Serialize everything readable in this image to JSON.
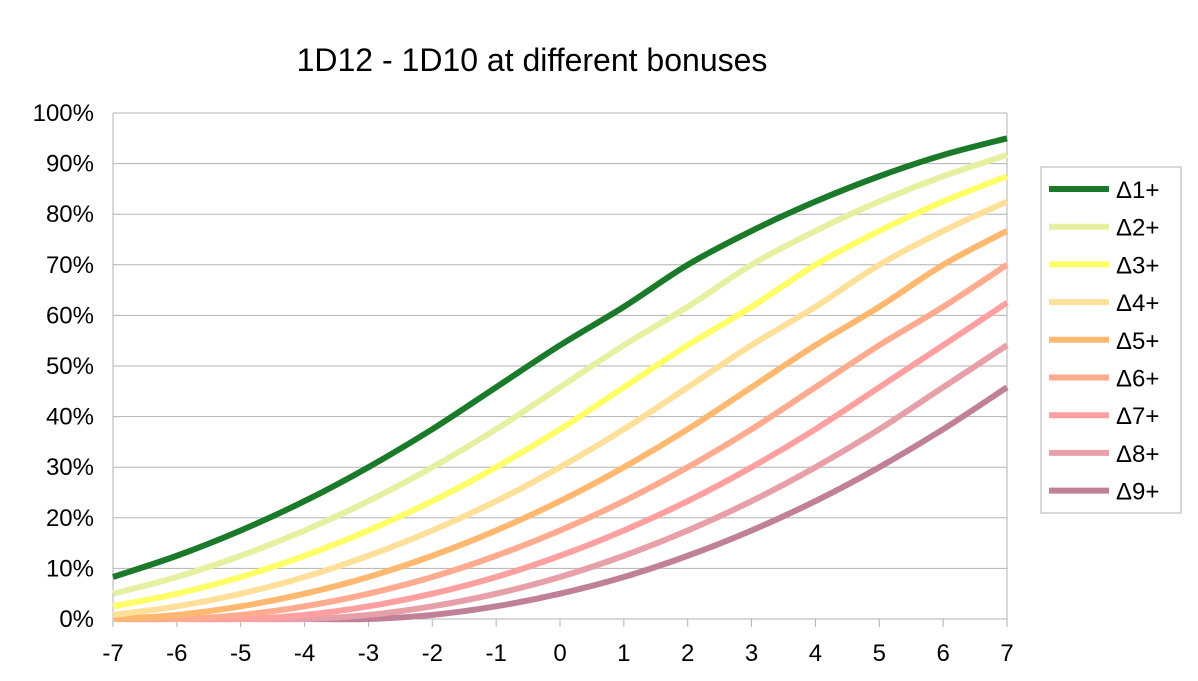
{
  "chart_data": {
    "type": "line",
    "title": "1D12 - 1D10 at different bonuses",
    "xlabel": "",
    "ylabel": "",
    "x": [
      -7,
      -6,
      -5,
      -4,
      -3,
      -2,
      -1,
      0,
      1,
      2,
      3,
      4,
      5,
      6,
      7
    ],
    "xticks": [
      "-7",
      "-6",
      "-5",
      "-4",
      "-3",
      "-2",
      "-1",
      "0",
      "1",
      "2",
      "3",
      "4",
      "5",
      "6",
      "7"
    ],
    "xlim": [
      -7,
      7
    ],
    "ylim": [
      0,
      1
    ],
    "yticks": [
      {
        "value": 0,
        "label": "0%"
      },
      {
        "value": 0.1,
        "label": "10%"
      },
      {
        "value": 0.2,
        "label": "20%"
      },
      {
        "value": 0.3,
        "label": "30%"
      },
      {
        "value": 0.4,
        "label": "40%"
      },
      {
        "value": 0.5,
        "label": "50%"
      },
      {
        "value": 0.6,
        "label": "60%"
      },
      {
        "value": 0.7,
        "label": "70%"
      },
      {
        "value": 0.8,
        "label": "80%"
      },
      {
        "value": 0.9,
        "label": "90%"
      },
      {
        "value": 1,
        "label": "100%"
      }
    ],
    "grid": "horizontal",
    "legend_position": "right",
    "series": [
      {
        "name": "Δ1+",
        "color": "#1a7a2a",
        "values": [
          0.083,
          0.125,
          0.175,
          0.233,
          0.3,
          0.375,
          0.458,
          0.541,
          0.617,
          0.7,
          0.767,
          0.825,
          0.875,
          0.917,
          0.95
        ]
      },
      {
        "name": "Δ2+",
        "color": "#e6f0a0",
        "values": [
          0.05,
          0.083,
          0.125,
          0.175,
          0.233,
          0.3,
          0.375,
          0.458,
          0.541,
          0.617,
          0.7,
          0.767,
          0.825,
          0.875,
          0.917
        ]
      },
      {
        "name": "Δ3+",
        "color": "#ffff66",
        "values": [
          0.025,
          0.05,
          0.083,
          0.125,
          0.175,
          0.233,
          0.3,
          0.375,
          0.458,
          0.541,
          0.617,
          0.7,
          0.767,
          0.825,
          0.875
        ]
      },
      {
        "name": "Δ4+",
        "color": "#ffe09a",
        "values": [
          0.008,
          0.025,
          0.05,
          0.083,
          0.125,
          0.175,
          0.233,
          0.3,
          0.375,
          0.458,
          0.541,
          0.617,
          0.7,
          0.767,
          0.825
        ]
      },
      {
        "name": "Δ5+",
        "color": "#ffb870",
        "values": [
          0.0,
          0.008,
          0.025,
          0.05,
          0.083,
          0.125,
          0.175,
          0.233,
          0.3,
          0.375,
          0.458,
          0.541,
          0.617,
          0.7,
          0.767
        ]
      },
      {
        "name": "Δ6+",
        "color": "#ffab90",
        "values": [
          0.0,
          0.0,
          0.008,
          0.025,
          0.05,
          0.083,
          0.125,
          0.175,
          0.233,
          0.3,
          0.375,
          0.458,
          0.541,
          0.617,
          0.7
        ]
      },
      {
        "name": "Δ7+",
        "color": "#ffa0a0",
        "values": [
          0.0,
          0.0,
          0.0,
          0.008,
          0.025,
          0.05,
          0.083,
          0.125,
          0.175,
          0.233,
          0.3,
          0.375,
          0.458,
          0.541,
          0.625
        ]
      },
      {
        "name": "Δ8+",
        "color": "#e8a0a8",
        "values": [
          0.0,
          0.0,
          0.0,
          0.0,
          0.008,
          0.025,
          0.05,
          0.083,
          0.125,
          0.175,
          0.233,
          0.3,
          0.375,
          0.458,
          0.541
        ]
      },
      {
        "name": "Δ9+",
        "color": "#c08098",
        "values": [
          0.0,
          0.0,
          0.0,
          0.0,
          0.0,
          0.008,
          0.025,
          0.05,
          0.083,
          0.125,
          0.175,
          0.233,
          0.3,
          0.375,
          0.458
        ]
      }
    ]
  }
}
